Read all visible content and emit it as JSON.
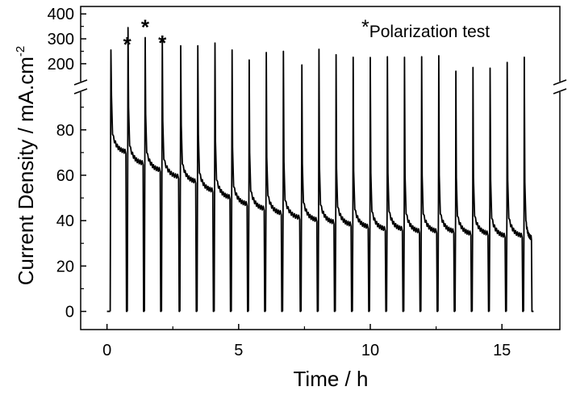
{
  "chart_data": {
    "type": "line",
    "title": "",
    "xlabel": "Time / h",
    "ylabel_main": "Current Density / mA.cm",
    "ylabel_sup": "-2",
    "xlim": [
      -1.0,
      17.2
    ],
    "ylim_lower": [
      -8,
      97
    ],
    "ylim_upper": [
      125,
      430
    ],
    "xticks": [
      0,
      5,
      10,
      15
    ],
    "xtick_labels": [
      "0",
      "5",
      "10",
      "15"
    ],
    "yticks_lower": [
      0,
      20,
      40,
      60,
      80
    ],
    "ytick_labels_lower": [
      "0",
      "20",
      "40",
      "60",
      "80"
    ],
    "yticks_upper": [
      200,
      300,
      400
    ],
    "ytick_labels_upper": [
      "200",
      "300",
      "400"
    ],
    "axis_break": "y between 97 and 125",
    "annotation": "Polarization test",
    "annotation_marker": "*",
    "polarization_peak_indices": [
      1,
      2,
      3
    ],
    "series": [
      {
        "peaks": [
          {
            "t": 0.15,
            "peak": 255,
            "after": 75
          },
          {
            "t": 0.8,
            "peak": 345,
            "after": 70
          },
          {
            "t": 1.45,
            "peak": 305,
            "after": 67
          },
          {
            "t": 2.1,
            "peak": 300,
            "after": 64
          },
          {
            "t": 2.8,
            "peak": 272,
            "after": 62
          },
          {
            "t": 3.45,
            "peak": 272,
            "after": 58
          },
          {
            "t": 4.1,
            "peak": 283,
            "after": 55
          },
          {
            "t": 4.75,
            "peak": 255,
            "after": 52
          },
          {
            "t": 5.4,
            "peak": 215,
            "after": 50
          },
          {
            "t": 6.05,
            "peak": 245,
            "after": 48
          },
          {
            "t": 6.7,
            "peak": 250,
            "after": 46
          },
          {
            "t": 7.4,
            "peak": 195,
            "after": 45
          },
          {
            "t": 8.05,
            "peak": 258,
            "after": 44
          },
          {
            "t": 8.7,
            "peak": 236,
            "after": 43
          },
          {
            "t": 9.35,
            "peak": 226,
            "after": 42
          },
          {
            "t": 10.0,
            "peak": 225,
            "after": 41
          },
          {
            "t": 10.65,
            "peak": 228,
            "after": 41
          },
          {
            "t": 11.3,
            "peak": 226,
            "after": 40
          },
          {
            "t": 11.95,
            "peak": 228,
            "after": 40
          },
          {
            "t": 12.6,
            "peak": 232,
            "after": 40
          },
          {
            "t": 13.25,
            "peak": 170,
            "after": 39
          },
          {
            "t": 13.9,
            "peak": 185,
            "after": 39
          },
          {
            "t": 14.55,
            "peak": 182,
            "after": 38
          },
          {
            "t": 15.2,
            "peak": 205,
            "after": 38
          },
          {
            "t": 15.85,
            "peak": 226,
            "after": 37
          }
        ],
        "end_t": 16.2,
        "baseline": 0
      }
    ]
  }
}
